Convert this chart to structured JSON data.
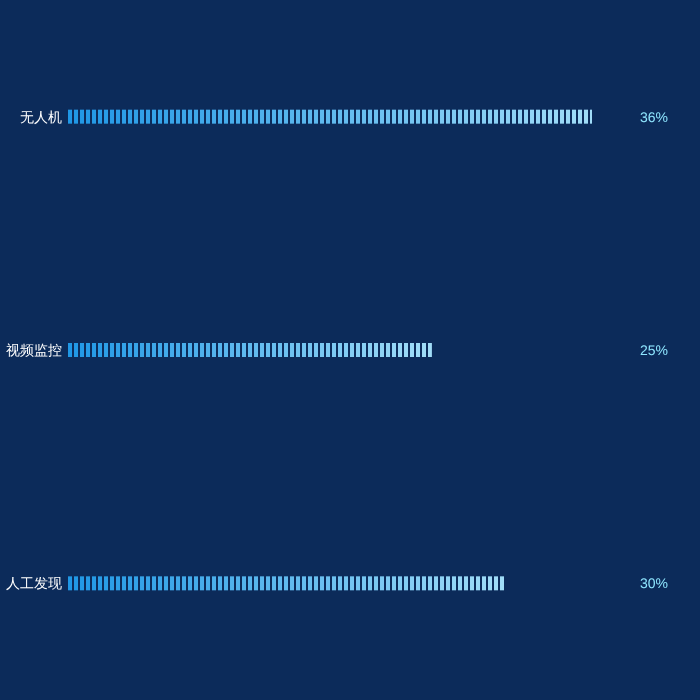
{
  "chart_data": {
    "type": "bar",
    "orientation": "horizontal",
    "categories": [
      "无人机",
      "视频监控",
      "人工发现"
    ],
    "values": [
      36,
      25,
      30
    ],
    "value_labels": [
      "36%",
      "25%",
      "30%"
    ],
    "color": "#2fb4f0"
  }
}
